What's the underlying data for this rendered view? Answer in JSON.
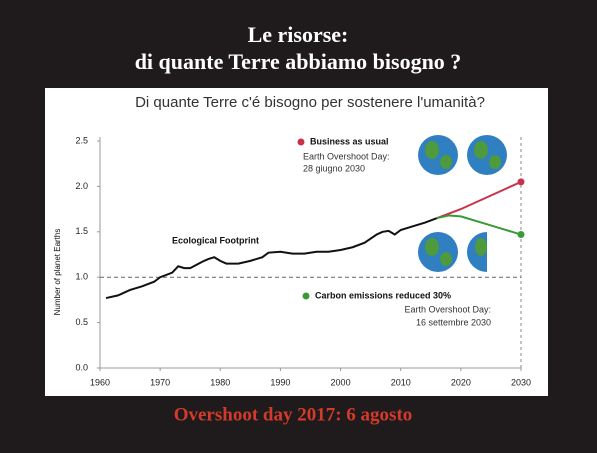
{
  "header": {
    "title_line1": "Le risorse:",
    "title_line2": "di quante Terre abbiamo bisogno ?"
  },
  "chart_data": {
    "type": "line",
    "title": "Di quante Terre c'é bisogno per sostenere l'umanità?",
    "y_label": "Number of planet Earths",
    "xlim": [
      1960,
      2030
    ],
    "xticks": [
      1960,
      1970,
      1980,
      1990,
      2000,
      2010,
      2020,
      2030
    ],
    "ylim": [
      0,
      2.5
    ],
    "yticks": [
      {
        "value": 0,
        "label": "0.0"
      },
      0.5,
      {
        "value": 1,
        "label": "1.0"
      },
      1.5,
      {
        "value": 2,
        "label": "2.0"
      },
      2.5
    ],
    "reference_line": 1,
    "series": [
      {
        "name": "Ecological Footprint",
        "color": "#111111",
        "x": [
          1961,
          1963,
          1965,
          1967,
          1969,
          1970,
          1972,
          1973,
          1974,
          1975,
          1977,
          1978,
          1979,
          1980,
          1981,
          1983,
          1985,
          1987,
          1988,
          1990,
          1992,
          1994,
          1996,
          1998,
          2000,
          2002,
          2004,
          2006,
          2007,
          2008,
          2009,
          2010,
          2012,
          2014,
          2016
        ],
        "values": [
          0.77,
          0.8,
          0.86,
          0.9,
          0.95,
          1.0,
          1.05,
          1.12,
          1.1,
          1.1,
          1.17,
          1.2,
          1.22,
          1.18,
          1.15,
          1.15,
          1.18,
          1.22,
          1.27,
          1.28,
          1.26,
          1.26,
          1.28,
          1.28,
          1.3,
          1.33,
          1.38,
          1.47,
          1.5,
          1.51,
          1.47,
          1.52,
          1.56,
          1.6,
          1.65
        ]
      },
      {
        "name": "Business as usual",
        "color": "#c8324a",
        "x": [
          2016,
          2020,
          2025,
          2030
        ],
        "values": [
          1.65,
          1.75,
          1.9,
          2.05
        ]
      },
      {
        "name": "Carbon emissions reduced 30%",
        "color": "#3a9a3a",
        "x": [
          2016,
          2018,
          2020,
          2025,
          2030
        ],
        "values": [
          1.65,
          1.68,
          1.67,
          1.57,
          1.47
        ]
      }
    ],
    "annotations": [
      "Earth Overshoot Day:",
      "28 giugno 2030",
      "Earth Overshoot Day:",
      "16 settembre 2030"
    ]
  },
  "footer": "Overshoot day 2017:  6 agosto"
}
